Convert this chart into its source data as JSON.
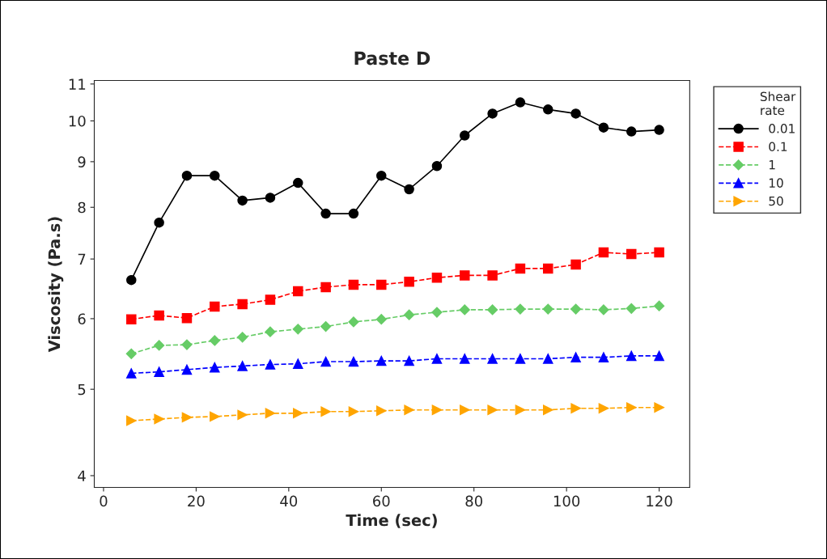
{
  "chart_data": {
    "type": "line",
    "title": "Paste D",
    "xlabel": "Time (sec)",
    "ylabel": "Viscosity (Pa.s)",
    "legend_title": "Shear\nrate",
    "x": [
      6,
      12,
      18,
      24,
      30,
      36,
      42,
      48,
      54,
      60,
      66,
      72,
      78,
      84,
      90,
      96,
      102,
      108,
      114,
      120
    ],
    "series": [
      {
        "name": "0.01",
        "color": "#000000",
        "marker": "circle",
        "line_style": "solid",
        "values": [
          6.63,
          7.69,
          8.68,
          8.68,
          8.14,
          8.2,
          8.52,
          7.87,
          7.87,
          8.68,
          8.38,
          8.9,
          9.63,
          10.19,
          10.49,
          10.3,
          10.19,
          9.83,
          9.73,
          9.77
        ]
      },
      {
        "name": "0.1",
        "color": "#ff0000",
        "marker": "square",
        "line_style": "dashed",
        "values": [
          5.99,
          6.05,
          6.01,
          6.19,
          6.23,
          6.3,
          6.44,
          6.51,
          6.55,
          6.55,
          6.6,
          6.67,
          6.71,
          6.71,
          6.83,
          6.83,
          6.9,
          7.12,
          7.09,
          7.12
        ]
      },
      {
        "name": "1",
        "color": "#66cc66",
        "marker": "diamond",
        "line_style": "dashed",
        "values": [
          5.48,
          5.6,
          5.61,
          5.67,
          5.72,
          5.8,
          5.84,
          5.88,
          5.95,
          5.99,
          6.06,
          6.1,
          6.14,
          6.14,
          6.15,
          6.15,
          6.15,
          6.14,
          6.16,
          6.2
        ]
      },
      {
        "name": "10",
        "color": "#0000ff",
        "marker": "triangle",
        "line_style": "dashed",
        "values": [
          5.21,
          5.23,
          5.26,
          5.29,
          5.31,
          5.33,
          5.34,
          5.37,
          5.37,
          5.38,
          5.38,
          5.41,
          5.41,
          5.41,
          5.41,
          5.41,
          5.43,
          5.43,
          5.45,
          5.45
        ]
      },
      {
        "name": "50",
        "color": "#ffa500",
        "marker": "triangle_right",
        "line_style": "dashed",
        "values": [
          4.61,
          4.63,
          4.65,
          4.66,
          4.68,
          4.7,
          4.7,
          4.72,
          4.72,
          4.73,
          4.74,
          4.74,
          4.74,
          4.74,
          4.74,
          4.74,
          4.76,
          4.76,
          4.77,
          4.77
        ]
      }
    ],
    "log": "y",
    "xlim": [
      -2,
      126.6
    ],
    "ylim": [
      3.88,
      11.1
    ],
    "xticks": [
      0,
      20,
      40,
      60,
      80,
      100,
      120
    ],
    "yticks": [
      4,
      5,
      6,
      7,
      8,
      9,
      10,
      11
    ],
    "grid": false,
    "legend": "right"
  }
}
